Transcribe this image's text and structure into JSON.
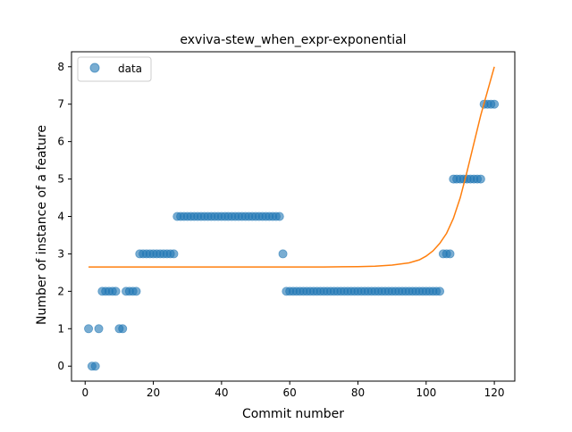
{
  "chart_data": {
    "type": "scatter",
    "title": "exviva-stew_when_expr-exponential",
    "xlabel": "Commit number",
    "ylabel": "Number of instance of a feature",
    "xlim": [
      -4,
      126
    ],
    "ylim": [
      -0.4,
      8.4
    ],
    "xticks": [
      0,
      20,
      40,
      60,
      80,
      100,
      120
    ],
    "yticks": [
      0,
      1,
      2,
      3,
      4,
      5,
      6,
      7,
      8
    ],
    "grid": false,
    "legend": {
      "placement": "top-left",
      "entries": [
        "data"
      ]
    },
    "colors": {
      "data": "#1f77b4",
      "fit": "#ff7f0e"
    },
    "series": [
      {
        "name": "data",
        "kind": "scatter",
        "points": [
          [
            1,
            1
          ],
          [
            2,
            0
          ],
          [
            3,
            0
          ],
          [
            4,
            1
          ],
          [
            5,
            2
          ],
          [
            6,
            2
          ],
          [
            7,
            2
          ],
          [
            8,
            2
          ],
          [
            9,
            2
          ],
          [
            10,
            1
          ],
          [
            11,
            1
          ],
          [
            12,
            2
          ],
          [
            13,
            2
          ],
          [
            14,
            2
          ],
          [
            15,
            2
          ],
          [
            16,
            3
          ],
          [
            17,
            3
          ],
          [
            18,
            3
          ],
          [
            19,
            3
          ],
          [
            20,
            3
          ],
          [
            21,
            3
          ],
          [
            22,
            3
          ],
          [
            23,
            3
          ],
          [
            24,
            3
          ],
          [
            25,
            3
          ],
          [
            26,
            3
          ],
          [
            27,
            4
          ],
          [
            28,
            4
          ],
          [
            29,
            4
          ],
          [
            30,
            4
          ],
          [
            31,
            4
          ],
          [
            32,
            4
          ],
          [
            33,
            4
          ],
          [
            34,
            4
          ],
          [
            35,
            4
          ],
          [
            36,
            4
          ],
          [
            37,
            4
          ],
          [
            38,
            4
          ],
          [
            39,
            4
          ],
          [
            40,
            4
          ],
          [
            41,
            4
          ],
          [
            42,
            4
          ],
          [
            43,
            4
          ],
          [
            44,
            4
          ],
          [
            45,
            4
          ],
          [
            46,
            4
          ],
          [
            47,
            4
          ],
          [
            48,
            4
          ],
          [
            49,
            4
          ],
          [
            50,
            4
          ],
          [
            51,
            4
          ],
          [
            52,
            4
          ],
          [
            53,
            4
          ],
          [
            54,
            4
          ],
          [
            55,
            4
          ],
          [
            56,
            4
          ],
          [
            57,
            4
          ],
          [
            58,
            3
          ],
          [
            59,
            2
          ],
          [
            60,
            2
          ],
          [
            61,
            2
          ],
          [
            62,
            2
          ],
          [
            63,
            2
          ],
          [
            64,
            2
          ],
          [
            65,
            2
          ],
          [
            66,
            2
          ],
          [
            67,
            2
          ],
          [
            68,
            2
          ],
          [
            69,
            2
          ],
          [
            70,
            2
          ],
          [
            71,
            2
          ],
          [
            72,
            2
          ],
          [
            73,
            2
          ],
          [
            74,
            2
          ],
          [
            75,
            2
          ],
          [
            76,
            2
          ],
          [
            77,
            2
          ],
          [
            78,
            2
          ],
          [
            79,
            2
          ],
          [
            80,
            2
          ],
          [
            81,
            2
          ],
          [
            82,
            2
          ],
          [
            83,
            2
          ],
          [
            84,
            2
          ],
          [
            85,
            2
          ],
          [
            86,
            2
          ],
          [
            87,
            2
          ],
          [
            88,
            2
          ],
          [
            89,
            2
          ],
          [
            90,
            2
          ],
          [
            91,
            2
          ],
          [
            92,
            2
          ],
          [
            93,
            2
          ],
          [
            94,
            2
          ],
          [
            95,
            2
          ],
          [
            96,
            2
          ],
          [
            97,
            2
          ],
          [
            98,
            2
          ],
          [
            99,
            2
          ],
          [
            100,
            2
          ],
          [
            101,
            2
          ],
          [
            102,
            2
          ],
          [
            103,
            2
          ],
          [
            104,
            2
          ],
          [
            105,
            3
          ],
          [
            106,
            3
          ],
          [
            107,
            3
          ],
          [
            108,
            5
          ],
          [
            109,
            5
          ],
          [
            110,
            5
          ],
          [
            111,
            5
          ],
          [
            112,
            5
          ],
          [
            113,
            5
          ],
          [
            114,
            5
          ],
          [
            115,
            5
          ],
          [
            116,
            5
          ],
          [
            117,
            7
          ],
          [
            118,
            7
          ],
          [
            119,
            7
          ],
          [
            120,
            7
          ]
        ]
      },
      {
        "kind": "line",
        "points": [
          [
            1,
            2.65
          ],
          [
            20,
            2.65
          ],
          [
            40,
            2.65
          ],
          [
            60,
            2.65
          ],
          [
            70,
            2.65
          ],
          [
            80,
            2.66
          ],
          [
            85,
            2.67
          ],
          [
            90,
            2.7
          ],
          [
            95,
            2.76
          ],
          [
            98,
            2.84
          ],
          [
            100,
            2.94
          ],
          [
            102,
            3.08
          ],
          [
            104,
            3.28
          ],
          [
            106,
            3.55
          ],
          [
            108,
            3.95
          ],
          [
            110,
            4.5
          ],
          [
            112,
            5.2
          ],
          [
            114,
            5.95
          ],
          [
            116,
            6.7
          ],
          [
            118,
            7.35
          ],
          [
            120,
            8.0
          ]
        ]
      }
    ]
  }
}
